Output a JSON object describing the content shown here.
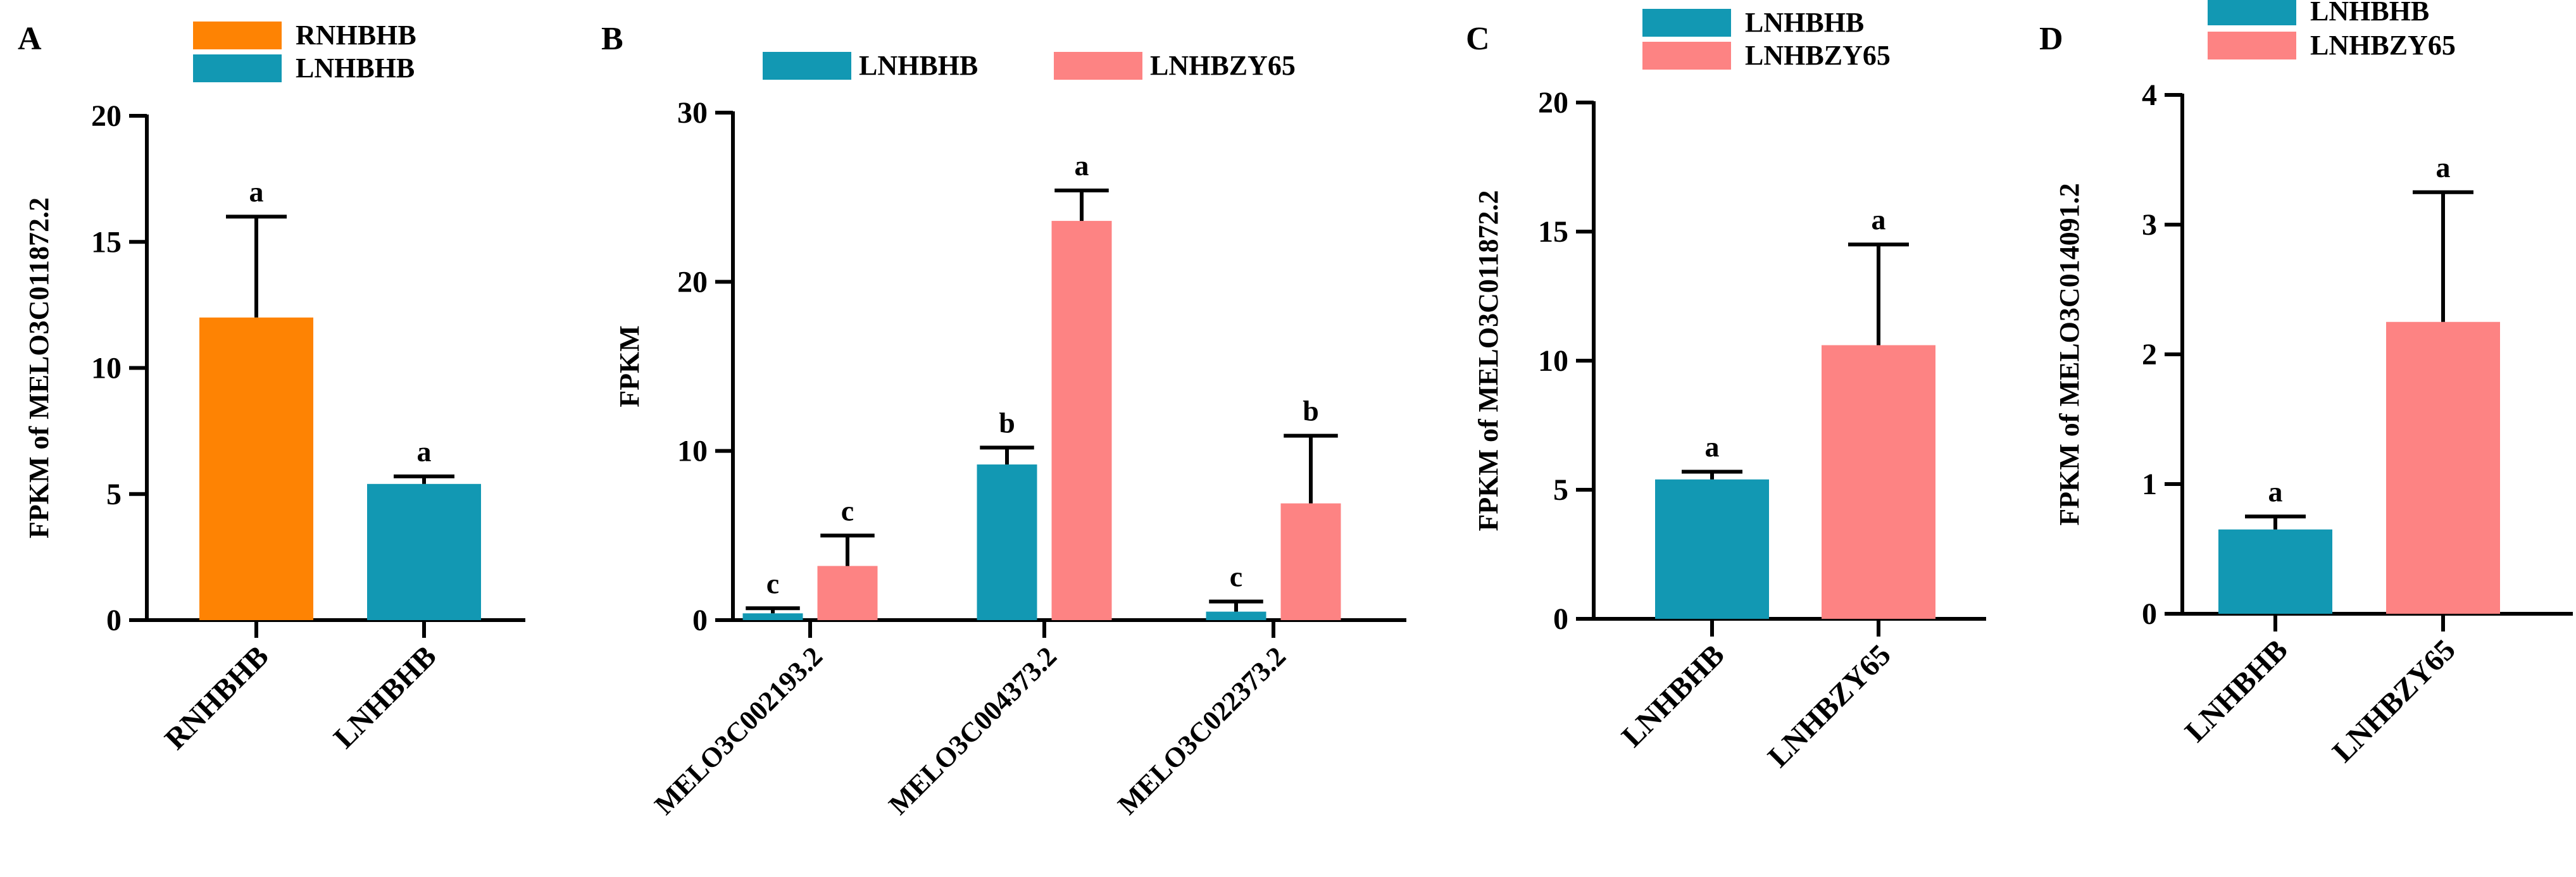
{
  "colors": {
    "orange": "#fe8303",
    "teal": "#1298b3",
    "pink": "#fd8383",
    "axis": "#000000"
  },
  "chart_data": [
    {
      "panel": "A",
      "type": "bar",
      "ylabel": "FPKM of MELO3C011872.2",
      "ylim": [
        0,
        20
      ],
      "yticks": [
        0,
        5,
        10,
        15,
        20
      ],
      "categories": [
        "RNHBHB",
        "LNHBHB"
      ],
      "legend": [
        {
          "name": "RNHBHB",
          "color": "#fe8303"
        },
        {
          "name": "LNHBHB",
          "color": "#1298b3"
        }
      ],
      "bars": [
        {
          "category": "RNHBHB",
          "value": 12.0,
          "error": 4.0,
          "letter": "a",
          "color": "#fe8303"
        },
        {
          "category": "LNHBHB",
          "value": 5.4,
          "error": 0.3,
          "letter": "a",
          "color": "#1298b3"
        }
      ]
    },
    {
      "panel": "B",
      "type": "bar",
      "ylabel": "FPKM",
      "ylim": [
        0,
        30
      ],
      "yticks": [
        0,
        10,
        20,
        30
      ],
      "categories": [
        "MELO3C002193.2",
        "MELO3C004373.2",
        "MELO3C022373.2"
      ],
      "legend": [
        {
          "name": "LNHBHB",
          "color": "#1298b3"
        },
        {
          "name": "LNHBZY65",
          "color": "#fd8383"
        }
      ],
      "series": [
        {
          "name": "LNHBHB",
          "color": "#1298b3",
          "values": [
            0.4,
            9.2,
            0.5
          ],
          "errors": [
            0.3,
            1.0,
            0.6
          ],
          "letters": [
            "c",
            "b",
            "c"
          ]
        },
        {
          "name": "LNHBZY65",
          "color": "#fd8383",
          "values": [
            3.2,
            23.6,
            6.9
          ],
          "errors": [
            1.8,
            1.8,
            4.0
          ],
          "letters": [
            "c",
            "a",
            "b"
          ]
        }
      ]
    },
    {
      "panel": "C",
      "type": "bar",
      "ylabel": "FPKM of MELO3C011872.2",
      "ylim": [
        0,
        20
      ],
      "yticks": [
        0,
        5,
        10,
        15,
        20
      ],
      "categories": [
        "LNHBHB",
        "LNHBZY65"
      ],
      "legend": [
        {
          "name": "LNHBHB",
          "color": "#1298b3"
        },
        {
          "name": "LNHBZY65",
          "color": "#fd8383"
        }
      ],
      "bars": [
        {
          "category": "LNHBHB",
          "value": 5.4,
          "error": 0.3,
          "letter": "a",
          "color": "#1298b3"
        },
        {
          "category": "LNHBZY65",
          "value": 10.6,
          "error": 3.9,
          "letter": "a",
          "color": "#fd8383"
        }
      ]
    },
    {
      "panel": "D",
      "type": "bar",
      "ylabel": "FPKM of MELO3C014091.2",
      "ylim": [
        0,
        4
      ],
      "yticks": [
        0,
        1,
        2,
        3,
        4
      ],
      "categories": [
        "LNHBHB",
        "LNHBZY65"
      ],
      "legend": [
        {
          "name": "LNHBHB",
          "color": "#1298b3"
        },
        {
          "name": "LNHBZY65",
          "color": "#fd8383"
        }
      ],
      "bars": [
        {
          "category": "LNHBHB",
          "value": 0.65,
          "error": 0.1,
          "letter": "a",
          "color": "#1298b3"
        },
        {
          "category": "LNHBZY65",
          "value": 2.25,
          "error": 1.0,
          "letter": "a",
          "color": "#fd8383"
        }
      ]
    }
  ]
}
